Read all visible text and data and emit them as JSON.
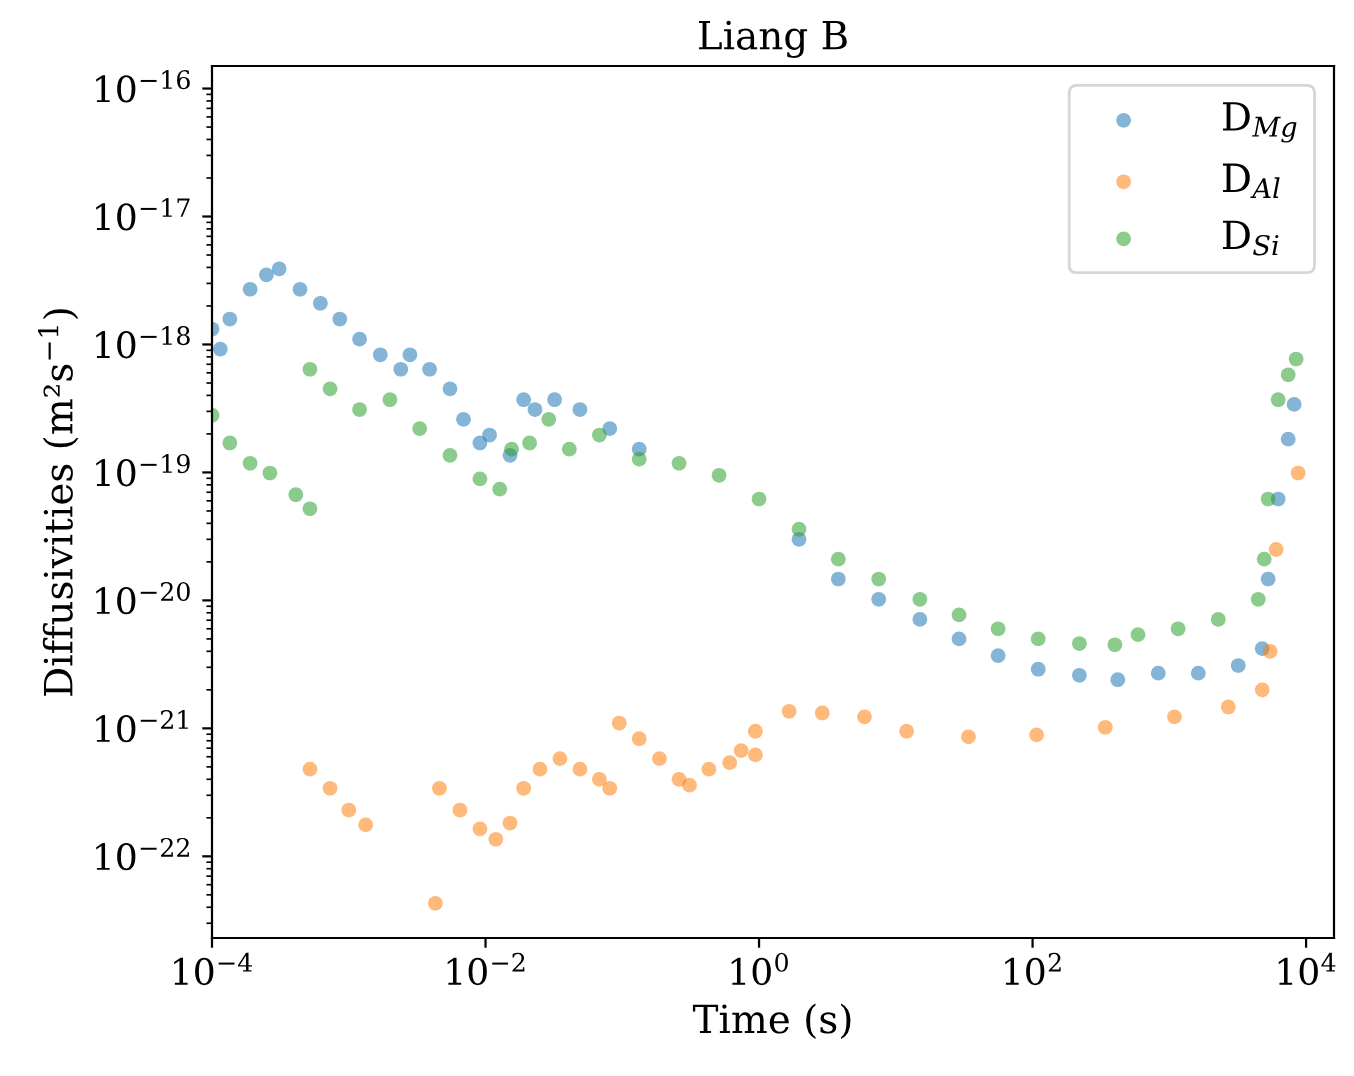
{
  "chart_data": {
    "type": "scatter",
    "title": "Liang B",
    "xlabel": "Time (s)",
    "ylabel": "Diffusivities (m²s$^{−1}$)",
    "log": "xy",
    "xlim": [
      0.0001,
      16000
    ],
    "ylim": [
      2.3e-23,
      1.5e-16
    ],
    "xticks": [
      {
        "value": 0.0001,
        "label": "10$^{−4}$"
      },
      {
        "value": 0.01,
        "label": "10$^{−2}$"
      },
      {
        "value": 1,
        "label": "10$^{0}$"
      },
      {
        "value": 100,
        "label": "10$^{2}$"
      },
      {
        "value": 10000,
        "label": "10$^{4}$"
      }
    ],
    "yticks": [
      {
        "value": 1e-22,
        "label": "10$^{−22}$"
      },
      {
        "value": 1e-21,
        "label": "10$^{−21}$"
      },
      {
        "value": 1e-20,
        "label": "10$^{−20}$"
      },
      {
        "value": 1e-19,
        "label": "10$^{−19}$"
      },
      {
        "value": 1e-18,
        "label": "10$^{−18}$"
      },
      {
        "value": 1e-17,
        "label": "10$^{−17}$"
      },
      {
        "value": 1e-16,
        "label": "10$^{−16}$"
      }
    ],
    "grid": false,
    "legend": "top right",
    "marker": "circle",
    "series": [
      {
        "name": "D$_{Mg}$",
        "color": "#1f77b4",
        "x": [
          0.0001,
          0.000115,
          0.000135,
          0.00019,
          0.00025,
          0.00031,
          0.00044,
          0.00062,
          0.00086,
          0.0012,
          0.0017,
          0.0024,
          0.0028,
          0.0039,
          0.0055,
          0.0069,
          0.0091,
          0.0107,
          0.0151,
          0.019,
          0.023,
          0.032,
          0.049,
          0.081,
          0.133,
          0.26,
          0.51,
          1.0,
          1.96,
          3.8,
          7.5,
          15,
          29,
          56,
          110,
          220,
          420,
          830,
          1630,
          3190,
          4780,
          5280,
          6250,
          7400,
          8180
        ],
        "values": [
          1.32e-18,
          9.2e-19,
          1.58e-18,
          2.7e-18,
          3.5e-18,
          3.9e-18,
          2.7e-18,
          2.1e-18,
          1.58e-18,
          1.1e-18,
          8.3e-19,
          6.4e-19,
          8.3e-19,
          6.4e-19,
          4.5e-19,
          2.6e-19,
          1.7e-19,
          1.96e-19,
          1.36e-19,
          3.7e-19,
          3.1e-19,
          3.7e-19,
          3.1e-19,
          2.2e-19,
          1.52e-19,
          null,
          null,
          null,
          3e-20,
          1.47e-20,
          1.02e-20,
          7.1e-21,
          5e-21,
          3.7e-21,
          2.9e-21,
          2.6e-21,
          2.4e-21,
          2.7e-21,
          2.7e-21,
          3.1e-21,
          4.2e-21,
          1.47e-20,
          6.2e-20,
          1.82e-19,
          3.4e-19
        ]
      },
      {
        "name": "D$_{Al}$",
        "color": "#ff7f0e",
        "x": [
          0.00052,
          0.00073,
          0.001,
          0.00133,
          0.0043,
          0.0046,
          0.0065,
          0.0091,
          0.0119,
          0.0151,
          0.019,
          0.025,
          0.035,
          0.049,
          0.068,
          0.081,
          0.095,
          0.133,
          0.187,
          0.26,
          0.31,
          0.43,
          0.61,
          0.94,
          0.74,
          0.94,
          1.66,
          2.9,
          5.9,
          12,
          34,
          107,
          340,
          1090,
          2700,
          4780,
          5460,
          6040,
          8750
        ],
        "values": [
          4.8e-22,
          3.4e-22,
          2.3e-22,
          1.76e-22,
          4.3e-23,
          3.4e-22,
          2.3e-22,
          1.64e-22,
          1.36e-22,
          1.82e-22,
          3.4e-22,
          4.8e-22,
          5.8e-22,
          4.8e-22,
          4e-22,
          3.4e-22,
          1.1e-21,
          8.3e-22,
          5.8e-22,
          4e-22,
          3.6e-22,
          4.8e-22,
          5.4e-22,
          6.2e-22,
          6.7e-22,
          9.5e-22,
          1.36e-21,
          1.32e-21,
          1.23e-21,
          9.5e-22,
          8.6e-22,
          8.9e-22,
          1.02e-21,
          1.23e-21,
          1.47e-21,
          2e-21,
          4e-21,
          2.5e-20,
          9.9e-20
        ]
      },
      {
        "name": "D$_{Si}$",
        "color": "#2ca02c",
        "x": [
          0.0001,
          0.000135,
          0.00019,
          0.000265,
          0.00041,
          0.00052,
          0.00052,
          0.00073,
          0.0012,
          0.002,
          0.0033,
          0.0055,
          0.0091,
          0.0127,
          0.0155,
          0.021,
          0.029,
          0.041,
          0.068,
          0.133,
          0.26,
          0.51,
          1.0,
          1.96,
          3.8,
          7.5,
          15,
          29,
          56,
          110,
          220,
          400,
          590,
          1160,
          2280,
          4470,
          4940,
          5280,
          6250,
          7400,
          8460
        ],
        "values": [
          2.8e-19,
          1.7e-19,
          1.18e-19,
          9.9e-20,
          6.7e-20,
          5.2e-20,
          6.4e-19,
          4.5e-19,
          3.1e-19,
          3.7e-19,
          2.2e-19,
          1.36e-19,
          8.9e-20,
          7.4e-20,
          1.52e-19,
          1.7e-19,
          2.6e-19,
          1.52e-19,
          1.96e-19,
          1.27e-19,
          1.18e-19,
          9.5e-20,
          6.2e-20,
          3.6e-20,
          2.1e-20,
          1.47e-20,
          1.02e-20,
          7.7e-21,
          6e-21,
          5e-21,
          4.6e-21,
          4.5e-21,
          5.4e-21,
          6e-21,
          7.1e-21,
          1.02e-20,
          2.1e-20,
          6.2e-20,
          3.7e-19,
          5.8e-19,
          7.7e-19
        ]
      }
    ]
  }
}
